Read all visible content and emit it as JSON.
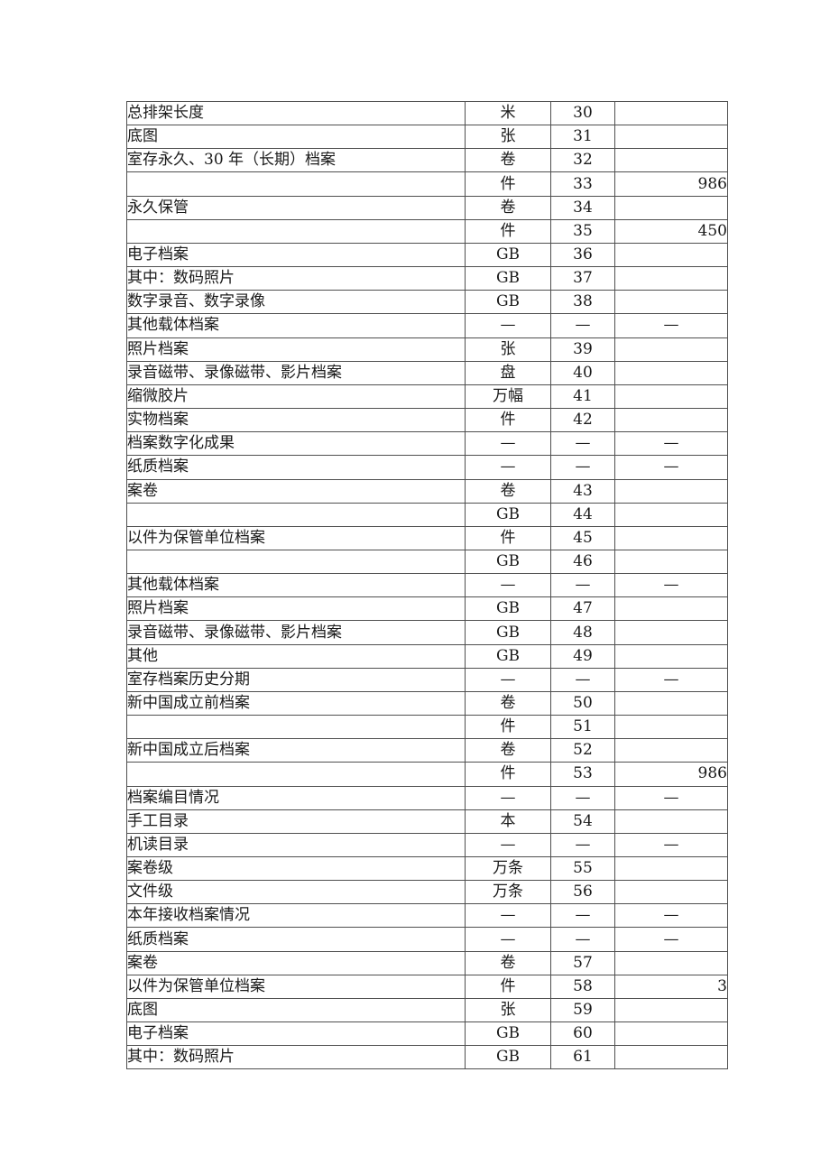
{
  "colors": {
    "background": "#ffffff",
    "border": "#4f4f4f",
    "text": "#1a1a1a"
  },
  "table": {
    "description": "archive-statistics-table-rows-30-to-61",
    "rows": [
      {
        "label": "总排架长度",
        "indent": 2,
        "unit": "米",
        "no": "30",
        "value": ""
      },
      {
        "label": "底图",
        "indent": 2,
        "unit": "张",
        "no": "31",
        "value": ""
      },
      {
        "label": "室存永久、30 年（长期）档案",
        "indent": 2,
        "unit": "卷",
        "no": "32",
        "value": ""
      },
      {
        "label": "",
        "indent": 0,
        "unit": "件",
        "no": "33",
        "value": "986"
      },
      {
        "label": "永久保管",
        "indent": 3,
        "unit": "卷",
        "no": "34",
        "value": ""
      },
      {
        "label": "",
        "indent": 0,
        "unit": "件",
        "no": "35",
        "value": "450"
      },
      {
        "label": "电子档案",
        "indent": 1,
        "unit": "GB",
        "no": "36",
        "value": ""
      },
      {
        "label": "其中：数码照片",
        "indent": 2,
        "unit": "GB",
        "no": "37",
        "value": ""
      },
      {
        "label": "数字录音、数字录像",
        "indent": 4,
        "unit": "GB",
        "no": "38",
        "value": ""
      },
      {
        "label": "其他载体档案",
        "indent": 1,
        "unit": "—",
        "no": "—",
        "value": "—"
      },
      {
        "label": "照片档案",
        "indent": 2,
        "unit": "张",
        "no": "39",
        "value": ""
      },
      {
        "label": "录音磁带、录像磁带、影片档案",
        "indent": 2,
        "unit": "盘",
        "no": "40",
        "value": ""
      },
      {
        "label": "缩微胶片",
        "indent": 2,
        "unit": "万幅",
        "no": "41",
        "value": ""
      },
      {
        "label": "实物档案",
        "indent": 1,
        "unit": "件",
        "no": "42",
        "value": ""
      },
      {
        "label": "档案数字化成果",
        "indent": 1,
        "unit": "—",
        "no": "—",
        "value": "—"
      },
      {
        "label": "纸质档案",
        "indent": 2,
        "unit": "—",
        "no": "—",
        "value": "—"
      },
      {
        "label": "案卷",
        "indent": 3,
        "unit": "卷",
        "no": "43",
        "value": ""
      },
      {
        "label": "",
        "indent": 0,
        "unit": "GB",
        "no": "44",
        "value": ""
      },
      {
        "label": "以件为保管单位档案",
        "indent": 3,
        "unit": "件",
        "no": "45",
        "value": ""
      },
      {
        "label": "",
        "indent": 0,
        "unit": "GB",
        "no": "46",
        "value": ""
      },
      {
        "label": "其他载体档案",
        "indent": 2,
        "unit": "—",
        "no": "—",
        "value": "—"
      },
      {
        "label": "照片档案",
        "indent": 3,
        "unit": "GB",
        "no": "47",
        "value": ""
      },
      {
        "label": "录音磁带、录像磁带、影片档案",
        "indent": 3,
        "unit": "GB",
        "no": "48",
        "value": ""
      },
      {
        "label": "其他",
        "indent": 3,
        "unit": "GB",
        "no": "49",
        "value": ""
      },
      {
        "label": "室存档案历史分期",
        "indent": 1,
        "unit": "—",
        "no": "—",
        "value": "—"
      },
      {
        "label": "新中国成立前档案",
        "indent": 2,
        "unit": "卷",
        "no": "50",
        "value": ""
      },
      {
        "label": "",
        "indent": 0,
        "unit": "件",
        "no": "51",
        "value": ""
      },
      {
        "label": "新中国成立后档案",
        "indent": 2,
        "unit": "卷",
        "no": "52",
        "value": ""
      },
      {
        "label": "",
        "indent": 0,
        "unit": "件",
        "no": "53",
        "value": "986"
      },
      {
        "label": "档案编目情况",
        "indent": 1,
        "unit": "—",
        "no": "—",
        "value": "—"
      },
      {
        "label": "手工目录",
        "indent": 2,
        "unit": "本",
        "no": "54",
        "value": ""
      },
      {
        "label": "机读目录",
        "indent": 2,
        "unit": "—",
        "no": "—",
        "value": "—"
      },
      {
        "label": "案卷级",
        "indent": 3,
        "unit": "万条",
        "no": "55",
        "value": ""
      },
      {
        "label": "文件级",
        "indent": 3,
        "unit": "万条",
        "no": "56",
        "value": ""
      },
      {
        "label": "本年接收档案情况",
        "indent": 1,
        "unit": "—",
        "no": "—",
        "value": "—"
      },
      {
        "label": "纸质档案",
        "indent": 2,
        "unit": "—",
        "no": "—",
        "value": "—"
      },
      {
        "label": "案卷",
        "indent": 3,
        "unit": "卷",
        "no": "57",
        "value": ""
      },
      {
        "label": "以件为保管单位档案",
        "indent": 3,
        "unit": "件",
        "no": "58",
        "value": "3"
      },
      {
        "label": "底图",
        "indent": 3,
        "unit": "张",
        "no": "59",
        "value": ""
      },
      {
        "label": "电子档案",
        "indent": 2,
        "unit": "GB",
        "no": "60",
        "value": ""
      },
      {
        "label": "其中：数码照片",
        "indent": 3,
        "unit": "GB",
        "no": "61",
        "value": ""
      }
    ]
  }
}
